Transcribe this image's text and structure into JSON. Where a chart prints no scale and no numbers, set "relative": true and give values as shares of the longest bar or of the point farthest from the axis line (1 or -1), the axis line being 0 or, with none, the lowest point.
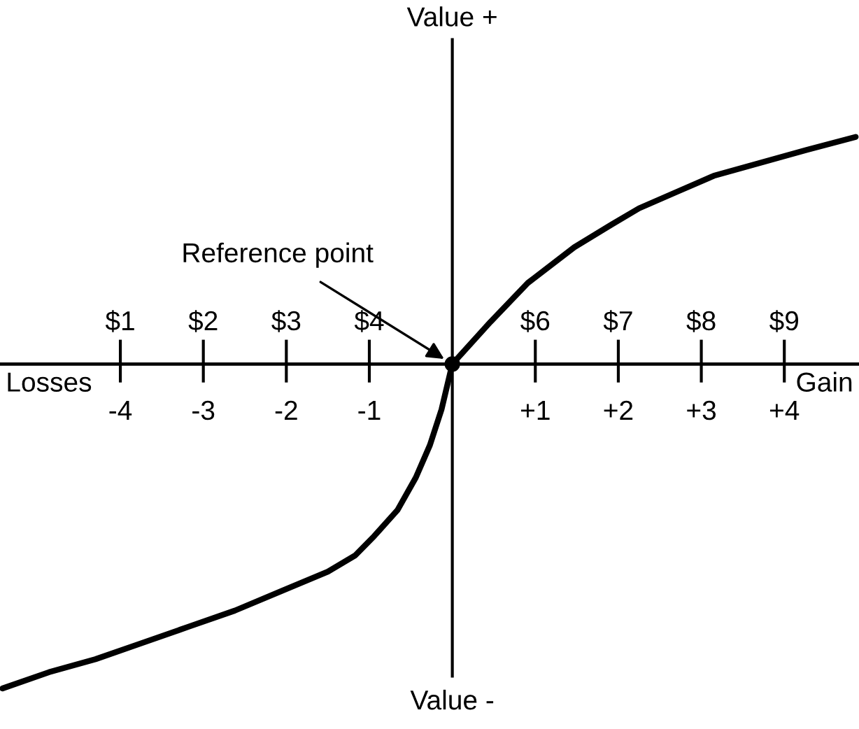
{
  "chart_data": {
    "type": "line",
    "relative": true,
    "line_style": "solid",
    "color": "#000000",
    "x": [
      -5.42,
      -4.86,
      -4.3,
      -3.74,
      -3.18,
      -2.62,
      -2.06,
      -1.5,
      -1.17,
      -0.94,
      -0.66,
      -0.44,
      -0.27,
      -0.13,
      0,
      0.46,
      0.91,
      1.47,
      1.92,
      2.25,
      2.7,
      3.15,
      3.71,
      4.27,
      4.86
    ],
    "values": [
      -1.0,
      -0.95,
      -0.91,
      -0.86,
      -0.81,
      -0.76,
      -0.7,
      -0.64,
      -0.59,
      -0.53,
      -0.45,
      -0.35,
      -0.25,
      -0.14,
      0,
      0.13,
      0.25,
      0.36,
      0.43,
      0.48,
      0.53,
      0.58,
      0.62,
      0.66,
      0.7
    ],
    "xlim": [
      -5.45,
      4.9
    ],
    "xticks": [
      -4,
      -3,
      -2,
      -1,
      {
        "value": 1,
        "label": "+1"
      },
      {
        "value": 2,
        "label": "+2"
      },
      {
        "value": 3,
        "label": "+3"
      },
      {
        "value": 4,
        "label": "+4"
      }
    ],
    "x2lim": [
      -0.45,
      9.9
    ],
    "x2ticks": [
      {
        "value": 1,
        "label": "$1"
      },
      {
        "value": 2,
        "label": "$2"
      },
      {
        "value": 3,
        "label": "$3"
      },
      {
        "value": 4,
        "label": "$4"
      },
      {
        "value": 6,
        "label": "$6"
      },
      {
        "value": 7,
        "label": "$7"
      },
      {
        "value": 8,
        "label": "$8"
      },
      {
        "value": 9,
        "label": "$9"
      }
    ],
    "annotations": [
      "Losses",
      "Gain",
      "Value +",
      "Value -",
      {
        "text": "Reference point",
        "x": 0,
        "y": 0
      }
    ]
  }
}
